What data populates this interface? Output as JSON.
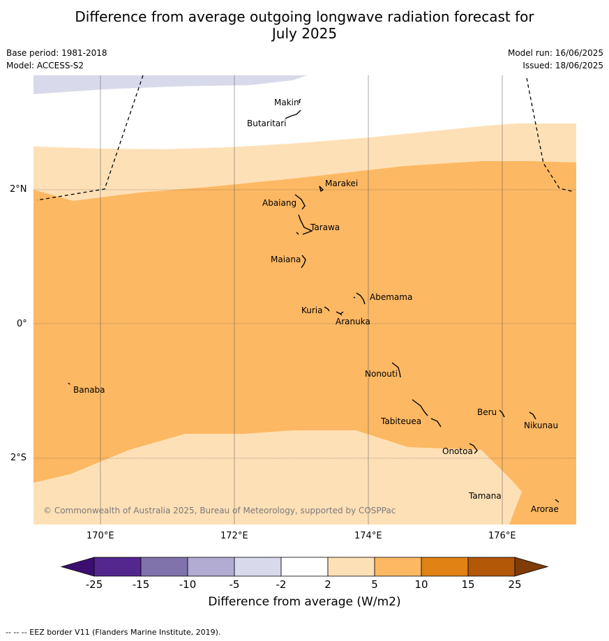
{
  "title_line1": "Difference from average outgoing longwave radiation forecast for",
  "title_line2": "July 2025",
  "base_period": "Base period: 1981-2018",
  "model": "Model: ACCESS-S2",
  "model_run": "Model run: 16/06/2025",
  "issued": "Issued: 18/06/2025",
  "lat_labels": [
    "2°N",
    "0°",
    "2°S"
  ],
  "lon_labels": [
    "170°E",
    "172°E",
    "174°E",
    "176°E"
  ],
  "places": {
    "makin": "Makin",
    "butaritari": "Butaritari",
    "marakei": "Marakei",
    "abaiang": "Abaiang",
    "tarawa": "Tarawa",
    "maiana": "Maiana",
    "abemama": "Abemama",
    "kuria": "Kuria",
    "aranuka": "Aranuka",
    "nonouti": "Nonouti",
    "banaba": "Banaba",
    "beru": "Beru",
    "nikunau": "Nikunau",
    "tabiteuea": "Tabiteuea",
    "onotoa": "Onotoa",
    "tamana": "Tamana",
    "arorae": "Arorae"
  },
  "copyright": "© Commonwealth of Australia 2025, Bureau of Meteorology, supported by COSPPac",
  "colorbar": {
    "ticks": [
      "-25",
      "-15",
      "-10",
      "-5",
      "-2",
      "2",
      "5",
      "10",
      "15",
      "25"
    ],
    "colors": [
      "#3b0f6f",
      "#54278f",
      "#8073ac",
      "#b2abd2",
      "#d8daeb",
      "#ffffff",
      "#fee0b6",
      "#fdb863",
      "#e08214",
      "#b35806",
      "#7f3b08"
    ],
    "label": "Difference from average (W/m2)"
  },
  "footer": "--  --  -- EEZ border V11 (Flanders Marine Institute, 2019)."
}
